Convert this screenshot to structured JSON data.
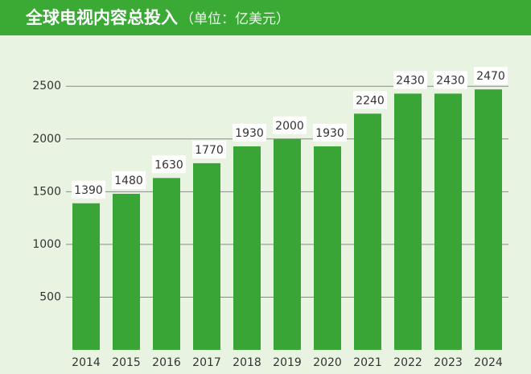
{
  "chart_data": {
    "type": "bar",
    "title": "全球电视内容总投入",
    "subtitle": "（单位：亿美元）",
    "categories": [
      "2014",
      "2015",
      "2016",
      "2017",
      "2018",
      "2019",
      "2020",
      "2021",
      "2022",
      "2023",
      "2024"
    ],
    "values": [
      1390,
      1480,
      1630,
      1770,
      1930,
      2000,
      1930,
      2240,
      2430,
      2430,
      2470
    ],
    "color": "#3aa537",
    "ylim": [
      0,
      2700
    ],
    "yticks": [
      500,
      1000,
      1500,
      2000,
      2500
    ],
    "grid": true
  }
}
